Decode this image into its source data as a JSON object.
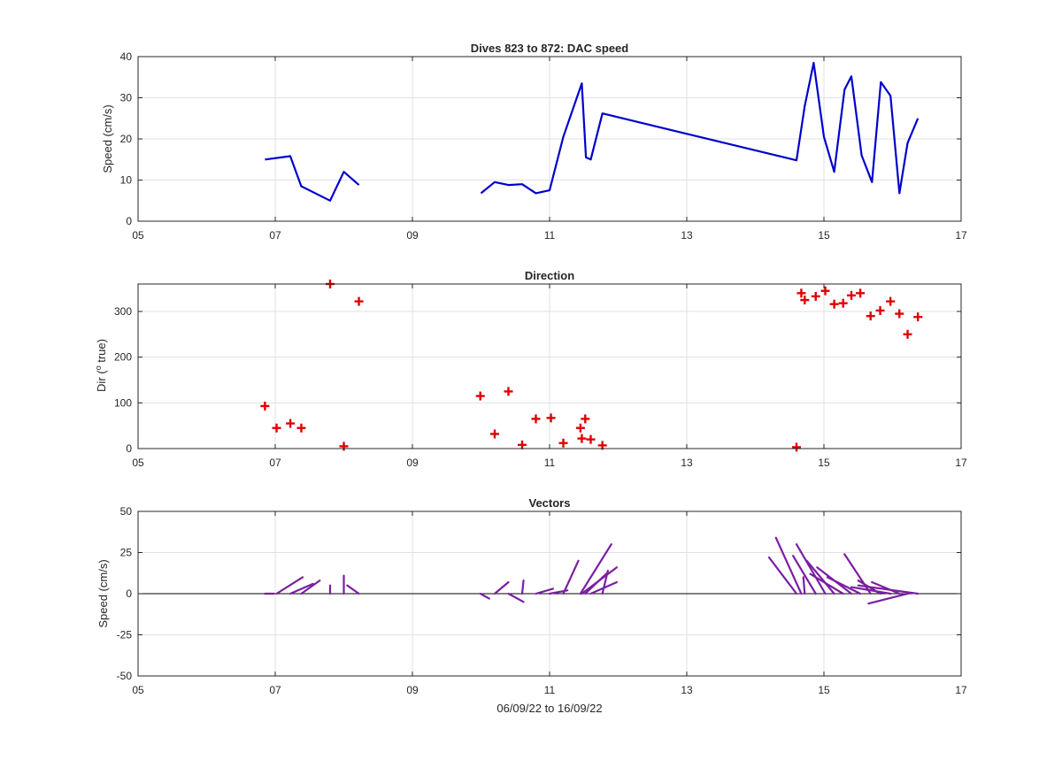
{
  "colors": {
    "speed_line": "#0000CC",
    "direction_marker": "#E00000",
    "vector": "#7A1FA2",
    "grid": "#E1E1E1",
    "axis": "#262626"
  },
  "xlabel": "06/09/22 to 16/09/22",
  "chart_data": [
    {
      "type": "line",
      "title": "Dives 823 to 872: DAC speed",
      "xlabel": "",
      "ylabel": "Speed (cm/s)",
      "xlim": [
        5,
        17
      ],
      "ylim": [
        0,
        40
      ],
      "x_ticks": [
        5,
        7,
        9,
        11,
        13,
        15,
        17
      ],
      "x_tick_labels": [
        "05",
        "07",
        "09",
        "11",
        "13",
        "15",
        "17"
      ],
      "y_ticks": [
        0,
        10,
        20,
        30,
        40
      ],
      "y_tick_labels": [
        "0",
        "10",
        "20",
        "30",
        "40"
      ],
      "grid": true,
      "segments": [
        {
          "x": [
            6.85,
            7.22,
            7.38,
            7.8,
            8.0,
            8.22
          ],
          "y": [
            15,
            15.8,
            8.5,
            5,
            12,
            8.8
          ]
        },
        {
          "x": [
            10.0,
            10.2,
            10.4,
            10.6,
            10.8,
            11.0,
            11.2,
            11.47,
            11.53,
            11.6,
            11.77,
            14.6,
            14.72,
            14.85,
            15.0,
            15.15,
            15.3,
            15.4,
            15.55,
            15.7,
            15.83,
            15.97,
            16.1,
            16.22,
            16.37
          ],
          "y": [
            6.8,
            9.5,
            8.8,
            9.0,
            6.8,
            7.5,
            20.5,
            33.5,
            15.5,
            15,
            26.2,
            14.8,
            28,
            38.5,
            20.5,
            12,
            32,
            35.2,
            16,
            9.5,
            33.8,
            30.5,
            6.8,
            19,
            25
          ]
        }
      ]
    },
    {
      "type": "scatter",
      "title": "Direction",
      "xlabel": "",
      "ylabel": "Dir (o true)",
      "ylabel_parts": [
        "Dir (",
        "o",
        " true)"
      ],
      "xlim": [
        5,
        17
      ],
      "ylim": [
        0,
        360
      ],
      "x_ticks": [
        5,
        7,
        9,
        11,
        13,
        15,
        17
      ],
      "x_tick_labels": [
        "05",
        "07",
        "09",
        "11",
        "13",
        "15",
        "17"
      ],
      "y_ticks": [
        0,
        100,
        200,
        300
      ],
      "y_tick_labels": [
        "0",
        "100",
        "200",
        "300"
      ],
      "grid": true,
      "marker": "+",
      "points": [
        [
          6.85,
          93
        ],
        [
          7.02,
          45
        ],
        [
          7.22,
          55
        ],
        [
          7.38,
          45
        ],
        [
          7.8,
          360
        ],
        [
          8.0,
          5
        ],
        [
          8.22,
          322
        ],
        [
          9.99,
          115
        ],
        [
          10.2,
          32
        ],
        [
          10.4,
          125
        ],
        [
          10.6,
          8
        ],
        [
          10.8,
          65
        ],
        [
          11.02,
          67
        ],
        [
          11.2,
          12
        ],
        [
          11.45,
          45
        ],
        [
          11.47,
          22
        ],
        [
          11.52,
          65
        ],
        [
          11.6,
          20
        ],
        [
          11.77,
          7
        ],
        [
          14.6,
          3
        ],
        [
          14.67,
          340
        ],
        [
          14.72,
          325
        ],
        [
          14.88,
          333
        ],
        [
          15.02,
          345
        ],
        [
          15.15,
          316
        ],
        [
          15.28,
          318
        ],
        [
          15.4,
          335
        ],
        [
          15.53,
          340
        ],
        [
          15.68,
          290
        ],
        [
          15.82,
          302
        ],
        [
          15.97,
          322
        ],
        [
          16.1,
          295
        ],
        [
          16.22,
          250
        ],
        [
          16.37,
          288
        ]
      ]
    },
    {
      "type": "vector",
      "title": "Vectors",
      "xlabel": "06/09/22 to 16/09/22",
      "ylabel": "Speed (cm/s)",
      "xlim": [
        5,
        17
      ],
      "ylim": [
        -50,
        50
      ],
      "x_ticks": [
        5,
        7,
        9,
        11,
        13,
        15,
        17
      ],
      "x_tick_labels": [
        "05",
        "07",
        "09",
        "11",
        "13",
        "15",
        "17"
      ],
      "y_ticks": [
        -50,
        -25,
        0,
        25,
        50
      ],
      "y_tick_labels": [
        "-50",
        "-25",
        "0",
        "25",
        "50"
      ],
      "grid": true,
      "vectors_xy_end": [
        [
          6.85,
          6.98,
          0
        ],
        [
          7.02,
          7.4,
          10
        ],
        [
          7.22,
          7.55,
          6
        ],
        [
          7.38,
          7.65,
          8
        ],
        [
          7.8,
          7.8,
          5
        ],
        [
          8.0,
          8.0,
          11
        ],
        [
          8.22,
          8.05,
          5
        ],
        [
          9.99,
          10.12,
          -3
        ],
        [
          10.2,
          10.4,
          7
        ],
        [
          10.4,
          10.62,
          -5
        ],
        [
          10.6,
          10.62,
          8
        ],
        [
          10.8,
          11.05,
          3
        ],
        [
          11.2,
          11.42,
          20
        ],
        [
          11.0,
          11.26,
          2
        ],
        [
          11.45,
          11.9,
          30
        ],
        [
          11.47,
          11.98,
          16
        ],
        [
          11.52,
          11.85,
          13
        ],
        [
          11.6,
          11.98,
          7
        ],
        [
          11.77,
          11.85,
          14
        ],
        [
          14.6,
          14.2,
          22
        ],
        [
          14.67,
          14.3,
          34
        ],
        [
          14.72,
          14.7,
          10
        ],
        [
          14.88,
          14.55,
          23
        ],
        [
          15.02,
          14.6,
          30
        ],
        [
          15.15,
          14.75,
          20
        ],
        [
          15.28,
          14.8,
          12
        ],
        [
          15.4,
          14.9,
          16
        ],
        [
          15.53,
          15.05,
          10
        ],
        [
          15.68,
          15.3,
          24
        ],
        [
          15.82,
          15.5,
          8
        ],
        [
          15.97,
          15.4,
          4
        ],
        [
          16.1,
          15.7,
          7
        ],
        [
          16.22,
          15.65,
          -6
        ],
        [
          16.37,
          15.5,
          5
        ]
      ]
    }
  ]
}
